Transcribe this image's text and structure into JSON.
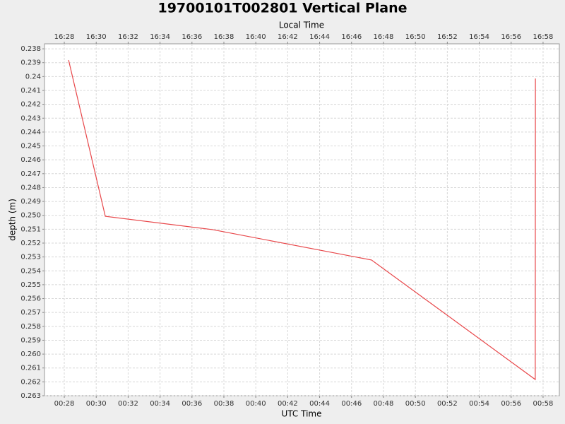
{
  "chart_data": {
    "type": "line",
    "title": "19700101T002801 Vertical Plane",
    "x_label": "UTC Time",
    "x2_label": "Local Time",
    "y_label": "depth (m)",
    "x": [
      28.27,
      30.57,
      37.29,
      47.25,
      57.51,
      57.52
    ],
    "values": [
      0.23881,
      0.25007,
      0.25103,
      0.25322,
      0.26183,
      0.24014
    ],
    "color": "#e8474a",
    "xlim": [
      26.76,
      59.02
    ],
    "xticks": [
      {
        "value": 28,
        "label": "00:28"
      },
      {
        "value": 30,
        "label": "00:30"
      },
      {
        "value": 32,
        "label": "00:32"
      },
      {
        "value": 34,
        "label": "00:34"
      },
      {
        "value": 36,
        "label": "00:36"
      },
      {
        "value": 38,
        "label": "00:38"
      },
      {
        "value": 40,
        "label": "00:40"
      },
      {
        "value": 42,
        "label": "00:42"
      },
      {
        "value": 44,
        "label": "00:44"
      },
      {
        "value": 46,
        "label": "00:46"
      },
      {
        "value": 48,
        "label": "00:48"
      },
      {
        "value": 50,
        "label": "00:50"
      },
      {
        "value": 52,
        "label": "00:52"
      },
      {
        "value": 54,
        "label": "00:54"
      },
      {
        "value": 56,
        "label": "00:56"
      },
      {
        "value": 58,
        "label": "00:58"
      }
    ],
    "x2ticks": [
      {
        "value": 28,
        "label": "16:28"
      },
      {
        "value": 30,
        "label": "16:30"
      },
      {
        "value": 32,
        "label": "16:32"
      },
      {
        "value": 34,
        "label": "16:34"
      },
      {
        "value": 36,
        "label": "16:36"
      },
      {
        "value": 38,
        "label": "16:38"
      },
      {
        "value": 40,
        "label": "16:40"
      },
      {
        "value": 42,
        "label": "16:42"
      },
      {
        "value": 44,
        "label": "16:44"
      },
      {
        "value": 46,
        "label": "16:46"
      },
      {
        "value": 48,
        "label": "16:48"
      },
      {
        "value": 50,
        "label": "16:50"
      },
      {
        "value": 52,
        "label": "16:52"
      },
      {
        "value": 54,
        "label": "16:54"
      },
      {
        "value": 56,
        "label": "16:56"
      },
      {
        "value": 58,
        "label": "16:58"
      }
    ],
    "ylim": [
      0.23764,
      0.263
    ],
    "y_inverted": true,
    "yticks": [
      0.238,
      0.239,
      0.24,
      0.241,
      0.242,
      0.243,
      0.244,
      0.245,
      0.246,
      0.247,
      0.248,
      0.249,
      {
        "value": 0.25,
        "label": "0.250"
      },
      0.251,
      0.252,
      0.253,
      0.254,
      0.255,
      0.256,
      0.257,
      0.258,
      0.259,
      {
        "value": 0.26,
        "label": "0.260"
      },
      0.261,
      0.262,
      0.263
    ],
    "grid": true
  }
}
